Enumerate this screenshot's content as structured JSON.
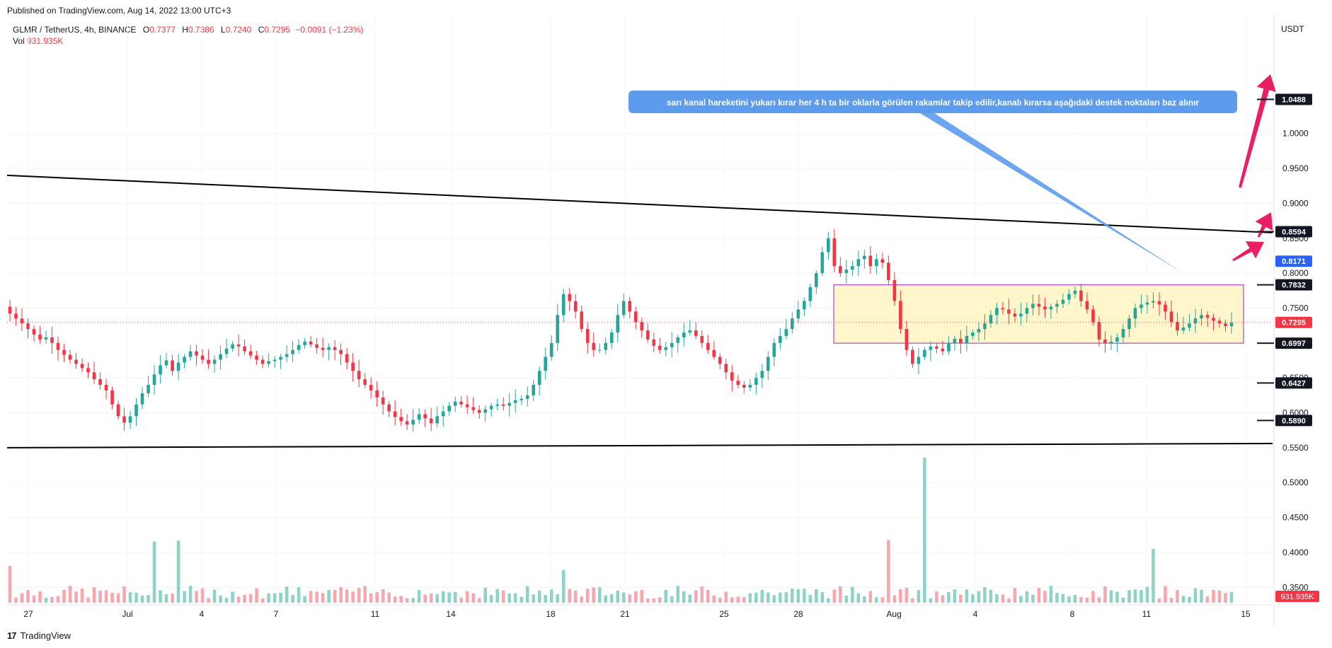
{
  "header": {
    "published": "Published on TradingView.com, Aug 14, 2022 13:00 UTC+3",
    "symbol": "GLMR / TetherUS, 4h, BINANCE",
    "open_label": "O",
    "open": "0.7377",
    "high_label": "H",
    "high": "0.7386",
    "low_label": "L",
    "low": "0.7240",
    "close_label": "C",
    "close": "0.7295",
    "change": "−0.0091 (−1.23%)",
    "vol_label": "Vol",
    "vol": "931.935K",
    "currency": "USDT"
  },
  "footer": {
    "brand": "TradingView",
    "logo": "17"
  },
  "colors": {
    "up": "#26a69a",
    "down": "#f23645",
    "vol_up": "#8fd3c8",
    "vol_down": "#f7a7ad",
    "channel_fill": "#fff6cc",
    "channel_border": "#9c27b0",
    "note_bg": "#5d9cec",
    "arrow": "#e91e63",
    "trendline": "#000000"
  },
  "annotation": {
    "text": "sarı kanal hareketini yukarı kırar her 4 h ta bir oklarla görülen rakamlar takip edilir,kanalı kırarsa aşağıdaki destek noktaları baz alınır"
  },
  "chart_data": {
    "type": "candlestick",
    "interval": "4h",
    "ylim": [
      0.33,
      1.1
    ],
    "y_ticks": [
      "1.0000",
      "0.9500",
      "0.9000",
      "0.8500",
      "0.8000",
      "0.7500",
      "0.6500",
      "0.6000",
      "0.5500",
      "0.5000",
      "0.4500",
      "0.4000",
      "0.3500"
    ],
    "x_ticks": [
      "27",
      "Jul",
      "4",
      "7",
      "11",
      "14",
      "18",
      "21",
      "25",
      "28",
      "Aug",
      "4",
      "8",
      "11",
      "15"
    ],
    "price_levels": [
      {
        "value": "1.0488",
        "style": "black"
      },
      {
        "value": "0.8594",
        "style": "black"
      },
      {
        "value": "0.8171",
        "style": "blue"
      },
      {
        "value": "0.7832",
        "style": "black"
      },
      {
        "value": "0.7295",
        "style": "red"
      },
      {
        "value": "0.6997",
        "style": "black"
      },
      {
        "value": "0.6427",
        "style": "black"
      },
      {
        "value": "0.5890",
        "style": "black"
      }
    ],
    "volume_last_label": "931.935K",
    "channel": {
      "top": 0.7832,
      "bottom": 0.6997
    },
    "trendlines": [
      {
        "name": "upper",
        "from": 0.94,
        "to": 0.858
      },
      {
        "name": "lower",
        "from": 0.55,
        "to": 0.556
      }
    ],
    "close_series": [
      0.742,
      0.735,
      0.728,
      0.72,
      0.712,
      0.705,
      0.708,
      0.7,
      0.69,
      0.683,
      0.676,
      0.67,
      0.664,
      0.658,
      0.648,
      0.64,
      0.632,
      0.612,
      0.595,
      0.586,
      0.595,
      0.612,
      0.628,
      0.64,
      0.655,
      0.668,
      0.675,
      0.66,
      0.672,
      0.68,
      0.688,
      0.682,
      0.676,
      0.67,
      0.676,
      0.684,
      0.692,
      0.698,
      0.695,
      0.688,
      0.682,
      0.676,
      0.67,
      0.674,
      0.676,
      0.68,
      0.684,
      0.69,
      0.697,
      0.702,
      0.698,
      0.693,
      0.69,
      0.694,
      0.69,
      0.684,
      0.672,
      0.66,
      0.648,
      0.64,
      0.632,
      0.622,
      0.612,
      0.602,
      0.594,
      0.588,
      0.583,
      0.59,
      0.598,
      0.592,
      0.585,
      0.595,
      0.602,
      0.61,
      0.616,
      0.612,
      0.608,
      0.604,
      0.6,
      0.605,
      0.61,
      0.612,
      0.61,
      0.614,
      0.618,
      0.62,
      0.625,
      0.64,
      0.66,
      0.68,
      0.7,
      0.74,
      0.77,
      0.76,
      0.745,
      0.72,
      0.7,
      0.69,
      0.69,
      0.7,
      0.715,
      0.74,
      0.76,
      0.745,
      0.73,
      0.718,
      0.705,
      0.696,
      0.69,
      0.694,
      0.7,
      0.708,
      0.715,
      0.718,
      0.71,
      0.7,
      0.69,
      0.68,
      0.67,
      0.658,
      0.646,
      0.64,
      0.636,
      0.64,
      0.65,
      0.66,
      0.68,
      0.7,
      0.71,
      0.72,
      0.735,
      0.748,
      0.76,
      0.78,
      0.8,
      0.83,
      0.85,
      0.81,
      0.8,
      0.805,
      0.81,
      0.82,
      0.825,
      0.81,
      0.82,
      0.815,
      0.79,
      0.76,
      0.72,
      0.69,
      0.67,
      0.68,
      0.69,
      0.695,
      0.692,
      0.688,
      0.7,
      0.706,
      0.7,
      0.71,
      0.715,
      0.72,
      0.728,
      0.74,
      0.75,
      0.748,
      0.742,
      0.738,
      0.742,
      0.75,
      0.756,
      0.752,
      0.748,
      0.752,
      0.756,
      0.762,
      0.77,
      0.775,
      0.76,
      0.748,
      0.73,
      0.705,
      0.7,
      0.702,
      0.708,
      0.72,
      0.735,
      0.75,
      0.755,
      0.758,
      0.76,
      0.755,
      0.745,
      0.73,
      0.718,
      0.722,
      0.728,
      0.735,
      0.74,
      0.736,
      0.732,
      0.728,
      0.724,
      0.729
    ]
  }
}
